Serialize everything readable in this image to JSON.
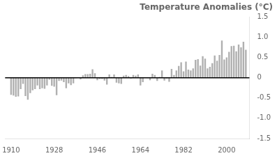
{
  "chart_data": {
    "type": "bar",
    "title": "Temperature Anomalies (°C)",
    "x": [
      1910,
      1911,
      1912,
      1913,
      1914,
      1915,
      1916,
      1917,
      1918,
      1919,
      1920,
      1921,
      1922,
      1923,
      1924,
      1925,
      1926,
      1927,
      1928,
      1929,
      1930,
      1931,
      1932,
      1933,
      1934,
      1935,
      1936,
      1937,
      1938,
      1939,
      1940,
      1941,
      1942,
      1943,
      1944,
      1945,
      1946,
      1947,
      1948,
      1949,
      1950,
      1951,
      1952,
      1953,
      1954,
      1955,
      1956,
      1957,
      1958,
      1959,
      1960,
      1961,
      1962,
      1963,
      1964,
      1965,
      1966,
      1967,
      1968,
      1969,
      1970,
      1971,
      1972,
      1973,
      1974,
      1975,
      1976,
      1977,
      1978,
      1979,
      1980,
      1981,
      1982,
      1983,
      1984,
      1985,
      1986,
      1987,
      1988,
      1989,
      1990,
      1991,
      1992,
      1993,
      1994,
      1995,
      1996,
      1997,
      1998,
      1999,
      2000,
      2001,
      2002,
      2003,
      2004,
      2005,
      2006,
      2007,
      2008
    ],
    "values": [
      -0.42,
      -0.44,
      -0.47,
      -0.46,
      -0.28,
      -0.15,
      -0.45,
      -0.54,
      -0.38,
      -0.31,
      -0.28,
      -0.19,
      -0.28,
      -0.26,
      -0.27,
      -0.19,
      -0.05,
      -0.2,
      -0.22,
      -0.43,
      -0.08,
      -0.07,
      -0.11,
      -0.26,
      -0.14,
      -0.18,
      -0.14,
      -0.01,
      -0.0,
      -0.04,
      0.06,
      0.09,
      0.09,
      0.1,
      0.21,
      0.11,
      -0.06,
      -0.03,
      -0.03,
      -0.07,
      -0.17,
      0.08,
      0.02,
      0.08,
      -0.12,
      -0.14,
      -0.15,
      0.05,
      0.07,
      0.04,
      -0.02,
      0.07,
      0.05,
      0.08,
      -0.19,
      -0.11,
      0.0,
      -0.01,
      -0.06,
      0.1,
      0.07,
      -0.08,
      0.02,
      0.18,
      -0.07,
      -0.02,
      -0.1,
      0.22,
      0.07,
      0.18,
      0.29,
      0.38,
      0.16,
      0.4,
      0.2,
      0.18,
      0.23,
      0.44,
      0.46,
      0.3,
      0.53,
      0.47,
      0.23,
      0.27,
      0.36,
      0.55,
      0.42,
      0.56,
      0.92,
      0.45,
      0.5,
      0.64,
      0.78,
      0.79,
      0.65,
      0.82,
      0.75,
      0.89,
      0.69
    ],
    "color": "#b0b0b0",
    "xlim": [
      1907.5,
      2009.5
    ],
    "xticks": [
      1910,
      1928,
      1946,
      1964,
      1982,
      2000
    ],
    "ylim": [
      -1.5,
      1.5
    ],
    "yticks": [
      -1.5,
      {
        "value": -1.0,
        "label": "-1.0"
      },
      -0.5,
      0,
      0.5,
      {
        "value": 1.0,
        "label": "1.0"
      },
      1.5
    ],
    "grid": false
  }
}
